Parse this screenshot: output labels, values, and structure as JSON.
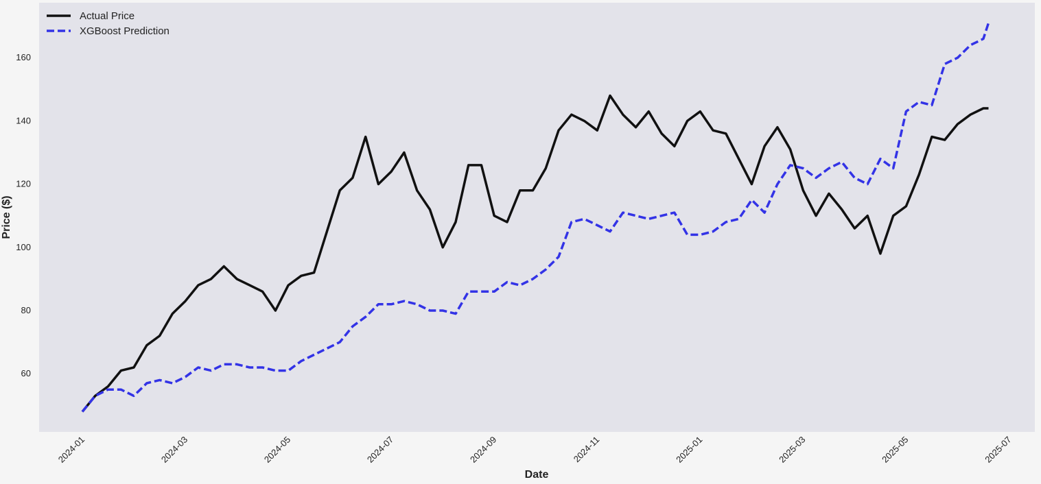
{
  "chart_data": {
    "type": "line",
    "xlabel": "Date",
    "ylabel": "Price ($)",
    "x": [
      0,
      0.25,
      0.5,
      0.75,
      1,
      1.25,
      1.5,
      1.75,
      2,
      2.25,
      2.5,
      2.75,
      3,
      3.25,
      3.5,
      3.75,
      4,
      4.25,
      4.5,
      4.75,
      5,
      5.25,
      5.5,
      5.75,
      6,
      6.25,
      6.5,
      6.75,
      7,
      7.25,
      7.5,
      7.75,
      8,
      8.25,
      8.5,
      8.75,
      9,
      9.25,
      9.5,
      9.75,
      10,
      10.25,
      10.5,
      10.75,
      11,
      11.25,
      11.5,
      11.75,
      12,
      12.25,
      12.5,
      12.75,
      13,
      13.25,
      13.5,
      13.75,
      14,
      14.25,
      14.5,
      14.75,
      15,
      15.25,
      15.5,
      15.75,
      16,
      16.25,
      16.5,
      16.75,
      17,
      17.25,
      17.5,
      17.6
    ],
    "series": [
      {
        "name": "Actual Price",
        "color": "#111111",
        "dash": false,
        "values": [
          48,
          53,
          56,
          61,
          62,
          69,
          72,
          79,
          83,
          88,
          90,
          94,
          90,
          88,
          86,
          80,
          88,
          91,
          92,
          105,
          118,
          122,
          135,
          120,
          124,
          130,
          118,
          112,
          100,
          108,
          126,
          126,
          110,
          108,
          118,
          118,
          125,
          137,
          142,
          140,
          137,
          148,
          142,
          138,
          143,
          136,
          132,
          140,
          143,
          137,
          136,
          128,
          120,
          132,
          138,
          131,
          118,
          110,
          117,
          112,
          106,
          110,
          98,
          110,
          113,
          123,
          135,
          134,
          139,
          142,
          144,
          144
        ]
      },
      {
        "name": "XGBoost Prediction",
        "color": "#3333e6",
        "dash": true,
        "values": [
          48,
          53,
          55,
          55,
          53,
          57,
          58,
          57,
          59,
          62,
          61,
          63,
          63,
          62,
          62,
          61,
          61,
          64,
          66,
          68,
          70,
          75,
          78,
          82,
          82,
          83,
          82,
          80,
          80,
          79,
          86,
          86,
          86,
          89,
          88,
          90,
          93,
          97,
          108,
          109,
          107,
          105,
          111,
          110,
          109,
          110,
          111,
          104,
          104,
          105,
          108,
          109,
          115,
          111,
          120,
          126,
          125,
          122,
          125,
          127,
          122,
          120,
          128,
          125,
          143,
          146,
          145,
          158,
          160,
          164,
          166,
          171
        ]
      }
    ],
    "xlim": [
      -0.84,
      18.5
    ],
    "xticks": [
      {
        "value": 0,
        "label": "2024-01"
      },
      {
        "value": 2,
        "label": "2024-03"
      },
      {
        "value": 4,
        "label": "2024-05"
      },
      {
        "value": 6,
        "label": "2024-07"
      },
      {
        "value": 8,
        "label": "2024-09"
      },
      {
        "value": 10,
        "label": "2024-11"
      },
      {
        "value": 12,
        "label": "2025-01"
      },
      {
        "value": 14,
        "label": "2025-03"
      },
      {
        "value": 16,
        "label": "2025-05"
      },
      {
        "value": 18,
        "label": "2025-07"
      }
    ],
    "ylim": [
      41.6,
      177.4
    ],
    "yticks": [
      60,
      80,
      100,
      120,
      140,
      160
    ],
    "grid": false,
    "legend": "upper-left"
  }
}
